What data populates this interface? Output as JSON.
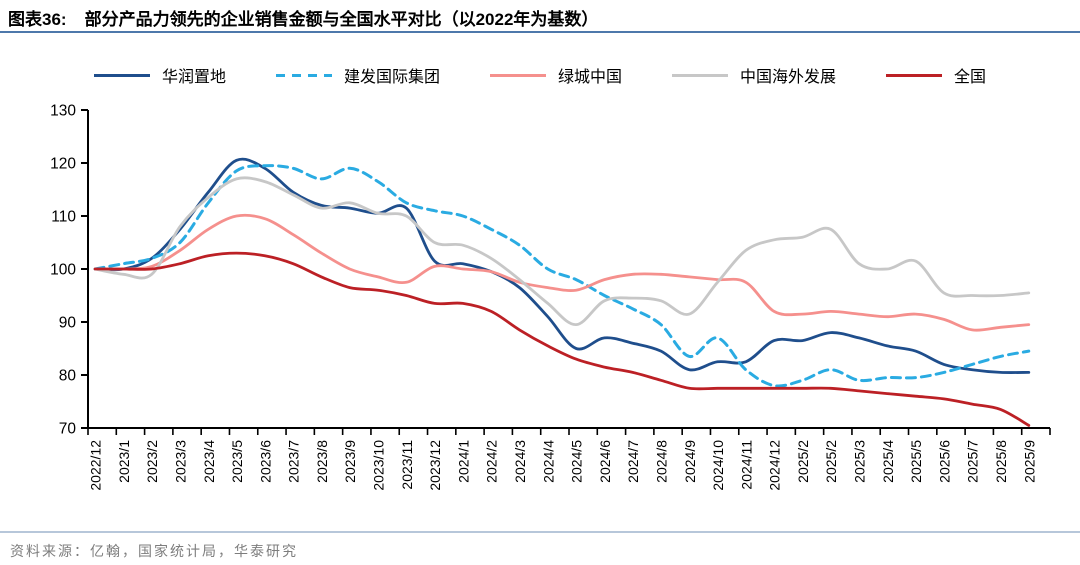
{
  "header": {
    "tag": "图表36:",
    "title": "部分产品力领先的企业销售金额与全国水平对比（以2022年为基数）"
  },
  "footer": {
    "source": "资料来源：亿翰，国家统计局，华泰研究"
  },
  "colors": {
    "header_rule": "#4d78ab",
    "footer_rule": "#b7c7da",
    "axis": "#000000"
  },
  "chart_data": {
    "type": "line",
    "title": "部分产品力领先的企业销售金额与全国水平对比（以2022年为基数）",
    "xlabel": "",
    "ylabel": "",
    "ylim": [
      70,
      130
    ],
    "ytick_step": 10,
    "grid": false,
    "legend_position": "top",
    "xlabel_rotation": -90,
    "categories": [
      "2022/12",
      "2023/1",
      "2023/2",
      "2023/3",
      "2023/4",
      "2023/5",
      "2023/6",
      "2023/7",
      "2023/8",
      "2023/9",
      "2023/10",
      "2023/11",
      "2023/12",
      "2024/1",
      "2024/2",
      "2024/3",
      "2024/4",
      "2024/5",
      "2024/6",
      "2024/7",
      "2024/8",
      "2024/9",
      "2024/10",
      "2024/11",
      "2024/12",
      "2025/2",
      "2025/2",
      "2025/3",
      "2025/4",
      "2025/5",
      "2025/6",
      "2025/7",
      "2025/8",
      "2025/9"
    ],
    "series": [
      {
        "name": "华润置地",
        "color": "#1f4e8c",
        "dash": null,
        "width": 2.8,
        "values": [
          100,
          100,
          102,
          107.5,
          114.5,
          120.5,
          119,
          114.5,
          112,
          111.5,
          110.5,
          111.5,
          101.5,
          101,
          99.5,
          96.5,
          91,
          85,
          87,
          86,
          84.5,
          81,
          82.5,
          82.5,
          86.5,
          86.5,
          88,
          87,
          85.5,
          84.5,
          82,
          81,
          80.5,
          80.5
        ]
      },
      {
        "name": "建发国际集团",
        "color": "#2aabe2",
        "dash": "9 6",
        "width": 3,
        "values": [
          100,
          101,
          102,
          105,
          112.5,
          118.5,
          119.5,
          119,
          117,
          119,
          116.5,
          112.5,
          111,
          110,
          107.5,
          104.5,
          100,
          98,
          95,
          92.5,
          89.5,
          83.5,
          87,
          81,
          78,
          79,
          81,
          79,
          79.5,
          79.5,
          80.5,
          82,
          83.5,
          84.5
        ]
      },
      {
        "name": "绿城中国",
        "color": "#f5908d",
        "dash": null,
        "width": 2.8,
        "values": [
          100,
          100,
          100.5,
          103.5,
          107.5,
          110,
          109.5,
          106.5,
          103,
          100,
          98.5,
          97.5,
          100.5,
          100,
          99.5,
          97.5,
          96.5,
          96,
          98,
          99,
          99,
          98.5,
          98,
          97.5,
          92,
          91.5,
          92,
          91.5,
          91,
          91.5,
          90.5,
          88.5,
          89,
          89.5
        ]
      },
      {
        "name": "中国海外发展",
        "color": "#c7c7c7",
        "dash": null,
        "width": 2.8,
        "values": [
          100,
          99,
          99,
          108,
          113.5,
          117,
          116.5,
          114,
          111.5,
          112.5,
          110.5,
          110,
          105,
          104.5,
          102,
          98,
          93.5,
          89.5,
          94,
          94.5,
          94,
          91.5,
          97.5,
          103.5,
          105.5,
          106,
          107.5,
          101,
          100,
          101.5,
          95.5,
          95,
          95,
          95.5
        ]
      },
      {
        "name": "全国",
        "color": "#bc2025",
        "dash": null,
        "width": 2.8,
        "values": [
          100,
          100,
          100,
          101,
          102.5,
          103,
          102.5,
          101,
          98.5,
          96.5,
          96,
          95,
          93.5,
          93.5,
          92,
          88.5,
          85.5,
          83,
          81.5,
          80.5,
          79,
          77.5,
          77.5,
          77.5,
          77.5,
          77.5,
          77.5,
          77,
          76.5,
          76,
          75.5,
          74.5,
          73.5,
          70.5
        ]
      }
    ]
  }
}
